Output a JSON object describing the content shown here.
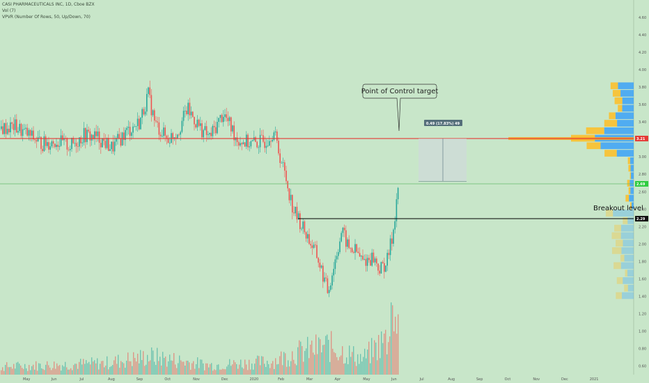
{
  "legend": {
    "symbol_line": "CASI PHARMACEUTICALS INC, 1D, Cboe BZX",
    "vol_line": "Vol (7)",
    "vpvr_line": "VPVR (Number Of Rows, 50, Up/Down, 70)"
  },
  "colors": {
    "background": "#c8e6c9",
    "up": "#26a69a",
    "down": "#ef5350",
    "poc_line": "#e53935",
    "current_line": "#66bb6a",
    "breakout_line": "#000000",
    "vp_up": "#42a5f5",
    "vp_down": "#fbc02d"
  },
  "chart_data": {
    "type": "candlestick",
    "x_tick_labels": [
      "May",
      "Jun",
      "Jul",
      "Aug",
      "Sep",
      "Oct",
      "Nov",
      "Dec",
      "2020",
      "Feb",
      "Mar",
      "Apr",
      "May",
      "Jun",
      "Jul",
      "Aug",
      "Sep",
      "Oct",
      "Nov",
      "Dec",
      "2021"
    ],
    "y_tick_labels": [
      "0.60",
      "0.80",
      "1.00",
      "1.20",
      "1.40",
      "1.60",
      "1.80",
      "2.00",
      "2.20",
      "2.40",
      "2.60",
      "2.80",
      "3.00",
      "3.20",
      "3.40",
      "3.60",
      "3.80",
      "4.00",
      "4.20",
      "4.40",
      "4.60"
    ],
    "ylim": [
      0.5,
      4.8
    ],
    "annotations": {
      "callout": "Point of Control target",
      "breakout": "Breakout level",
      "measure": "0.49 (17.83%) 49",
      "price_tags": [
        {
          "label": "3.21",
          "value": 3.21,
          "color": "#e53935"
        },
        {
          "label": "2.69",
          "value": 2.69,
          "color": "#2ecc40"
        },
        {
          "label": "2.29",
          "value": 2.29,
          "color": "#111111"
        }
      ]
    },
    "price_path": [
      [
        0,
        3.32
      ],
      [
        20,
        3.35
      ],
      [
        40,
        3.25
      ],
      [
        60,
        3.15
      ],
      [
        80,
        3.18
      ],
      [
        100,
        3.12
      ],
      [
        120,
        3.25
      ],
      [
        140,
        3.22
      ],
      [
        160,
        3.1
      ],
      [
        180,
        3.28
      ],
      [
        200,
        3.4
      ],
      [
        212,
        3.72
      ],
      [
        222,
        3.38
      ],
      [
        240,
        3.2
      ],
      [
        255,
        3.3
      ],
      [
        268,
        3.55
      ],
      [
        285,
        3.35
      ],
      [
        300,
        3.22
      ],
      [
        320,
        3.5
      ],
      [
        340,
        3.2
      ],
      [
        360,
        3.15
      ],
      [
        380,
        3.18
      ],
      [
        392,
        3.3
      ],
      [
        400,
        3.05
      ],
      [
        410,
        2.75
      ],
      [
        420,
        2.4
      ],
      [
        428,
        2.28
      ],
      [
        440,
        2.1
      ],
      [
        455,
        1.85
      ],
      [
        470,
        1.45
      ],
      [
        480,
        1.8
      ],
      [
        490,
        2.15
      ],
      [
        500,
        1.95
      ],
      [
        510,
        1.92
      ],
      [
        520,
        1.8
      ],
      [
        535,
        1.85
      ],
      [
        545,
        1.7
      ],
      [
        555,
        1.8
      ],
      [
        563,
        2.1
      ],
      [
        568,
        2.45
      ],
      [
        572,
        2.75
      ]
    ],
    "volume_path": [
      [
        0,
        0.15
      ],
      [
        150,
        0.22
      ],
      [
        215,
        0.35
      ],
      [
        300,
        0.18
      ],
      [
        390,
        0.25
      ],
      [
        420,
        0.4
      ],
      [
        470,
        0.55
      ],
      [
        520,
        0.3
      ],
      [
        560,
        0.75
      ],
      [
        572,
        0.95
      ]
    ]
  }
}
